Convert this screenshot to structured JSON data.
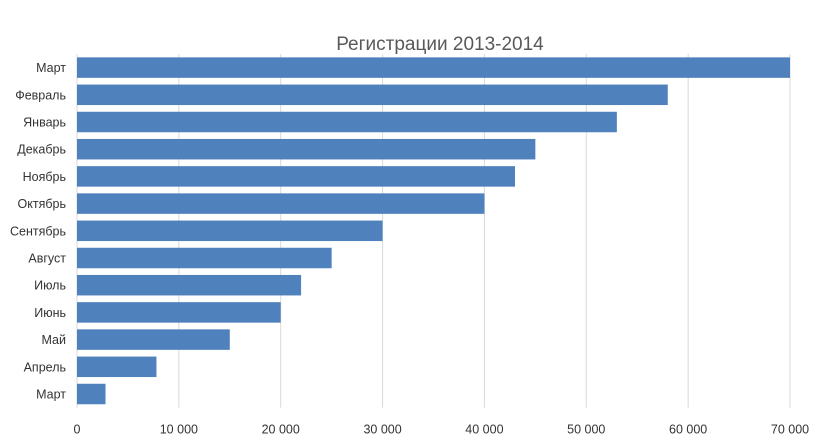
{
  "chart_data": {
    "type": "bar",
    "orientation": "horizontal",
    "title": "Регистрации 2013-2014",
    "xlabel": "",
    "ylabel": "",
    "categories": [
      "Март",
      "Февраль",
      "Январь",
      "Декабрь",
      "Ноябрь",
      "Октябрь",
      "Сентябрь",
      "Август",
      "Июль",
      "Июнь",
      "Май",
      "Апрель",
      "Март"
    ],
    "values": [
      70000,
      58000,
      53000,
      45000,
      43000,
      40000,
      30000,
      25000,
      22000,
      20000,
      15000,
      7800,
      2800
    ],
    "xlim": [
      0,
      70000
    ],
    "ticks": [
      0,
      10000,
      20000,
      30000,
      40000,
      50000,
      60000,
      70000
    ],
    "tick_labels": [
      "0",
      "10 000",
      "20 000",
      "30 000",
      "40 000",
      "50 000",
      "60 000",
      "70 000"
    ],
    "grid": true,
    "legend": "none",
    "bar_color": "#4f81bd"
  }
}
